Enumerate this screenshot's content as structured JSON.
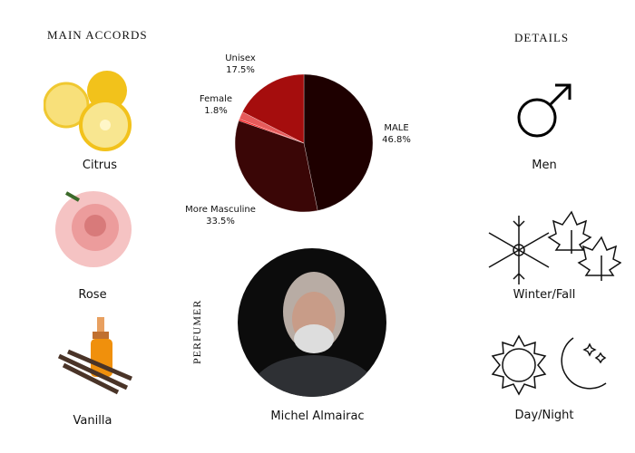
{
  "main_accords": {
    "title": "MAIN ACCORDS",
    "items": [
      {
        "label": "Citrus",
        "icon": "lemon-image"
      },
      {
        "label": "Rose",
        "icon": "rose-image"
      },
      {
        "label": "Vanilla",
        "icon": "vanilla-image"
      }
    ]
  },
  "details": {
    "title": "DETAILS",
    "items": [
      {
        "label": "Men",
        "icon": "male-symbol-icon"
      },
      {
        "label": "Winter/Fall",
        "icon": "snowflake-leaves-icon"
      },
      {
        "label": "Day/Night",
        "icon": "sun-moon-icon"
      }
    ]
  },
  "perfumer": {
    "title": "PERFUMER",
    "name": "Michel Almairac"
  },
  "chart_data": {
    "type": "pie",
    "start": "top",
    "direction": "clockwise",
    "slices": [
      {
        "label": "MALE",
        "pct_label": "46.8%",
        "value": 46.8,
        "color": "#1e0000"
      },
      {
        "label": "More Masculine",
        "pct_label": "33.5%",
        "value": 33.5,
        "color": "#3a0606"
      },
      {
        "label": "",
        "pct_label": "",
        "value": 0.4,
        "color": "#ff1a1a"
      },
      {
        "label": "Female",
        "pct_label": "1.8%",
        "value": 1.8,
        "color": "#e65a5a"
      },
      {
        "label": "Unisex",
        "pct_label": "17.5%",
        "value": 17.5,
        "color": "#a50d0d"
      }
    ]
  }
}
